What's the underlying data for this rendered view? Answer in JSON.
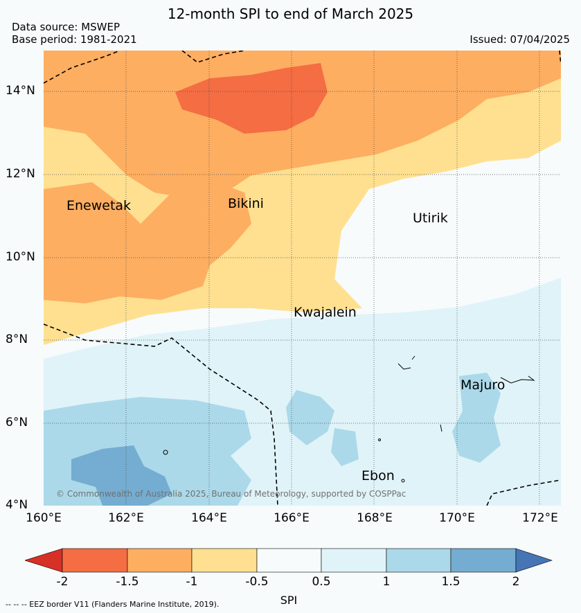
{
  "header": {
    "title": "12-month SPI to end of March 2025",
    "source": "Data source: MSWEP",
    "base_period": "Base period: 1981-2021",
    "issued": "Issued: 07/04/2025"
  },
  "axes": {
    "lat_labels": [
      "14°N",
      "12°N",
      "10°N",
      "8°N",
      "6°N",
      "4°N"
    ],
    "lon_labels": [
      "160°E",
      "162°E",
      "164°E",
      "166°E",
      "168°E",
      "170°E",
      "172°E"
    ]
  },
  "places": {
    "enewetak": "Enewetak",
    "bikini": "Bikini",
    "utirik": "Utirik",
    "kwajalein": "Kwajalein",
    "majuro": "Majuro",
    "ebon": "Ebon"
  },
  "copyright": "© Commonwealth of Australia 2025, Bureau of Meteorology, supported by COSPPac",
  "colorbar": {
    "title": "SPI",
    "ticks": [
      "-2",
      "-1.5",
      "-1",
      "-0.5",
      "0.5",
      "1",
      "1.5",
      "2"
    ],
    "colors": [
      "#d73027",
      "#f46d43",
      "#fdae61",
      "#fee090",
      "#f7fbfc",
      "#e0f3f8",
      "#abd9e9",
      "#74add1",
      "#4575b4"
    ]
  },
  "footnote": "-- -- -- EEZ border V11 (Flanders Marine Institute, 2019)."
}
